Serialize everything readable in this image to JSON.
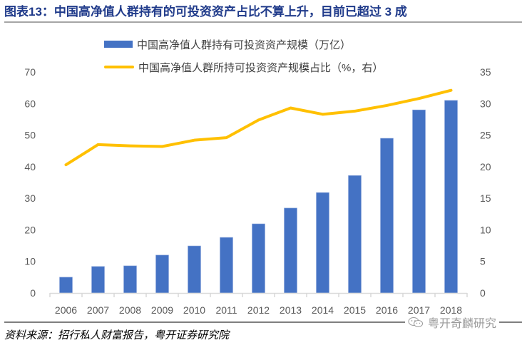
{
  "header": {
    "title": "图表13：中国高净值人群持有的可投资资产占比不算上升，目前已超过 3 成"
  },
  "footer": {
    "source": "资料来源：招行私人财富报告，粤开证券研究院",
    "watermark": "粤开奇麟研究",
    "watermark_icon": "wechat-icon"
  },
  "colors": {
    "bar": "#4472c4",
    "line": "#ffc000",
    "title": "#1f3a8a",
    "axis": "#d9d9d9",
    "tick_text": "#595959"
  },
  "chart_data": {
    "type": "bar",
    "title": "图表13：中国高净值人群持有的可投资资产占比不算上升，目前已超过 3 成",
    "categories": [
      "2006",
      "2007",
      "2008",
      "2009",
      "2010",
      "2011",
      "2012",
      "2013",
      "2014",
      "2015",
      "2016",
      "2017",
      "2018"
    ],
    "series": [
      {
        "name": "中国高净值人群持有可投资资产规模（万亿）",
        "type": "bar",
        "axis": "left",
        "values": [
          5.0,
          8.4,
          8.6,
          12.0,
          14.9,
          17.6,
          21.9,
          26.9,
          31.8,
          37.2,
          49.0,
          58.0,
          61.0
        ]
      },
      {
        "name": "中国高净值人群所持可投资资产规模占比（%，右）",
        "type": "line",
        "axis": "right",
        "values": [
          20.3,
          23.5,
          23.3,
          23.2,
          24.2,
          24.6,
          27.4,
          29.3,
          28.3,
          28.8,
          29.7,
          30.8,
          32.1
        ]
      }
    ],
    "xlabel": "",
    "ylabel": "",
    "y_left": {
      "lim": [
        0,
        70
      ],
      "ticks": [
        0,
        10,
        20,
        30,
        40,
        50,
        60,
        70
      ]
    },
    "y_right": {
      "lim": [
        0,
        35
      ],
      "ticks": [
        0,
        5,
        10,
        15,
        20,
        25,
        30,
        35
      ]
    },
    "grid": false,
    "legend_position": "top-center"
  }
}
